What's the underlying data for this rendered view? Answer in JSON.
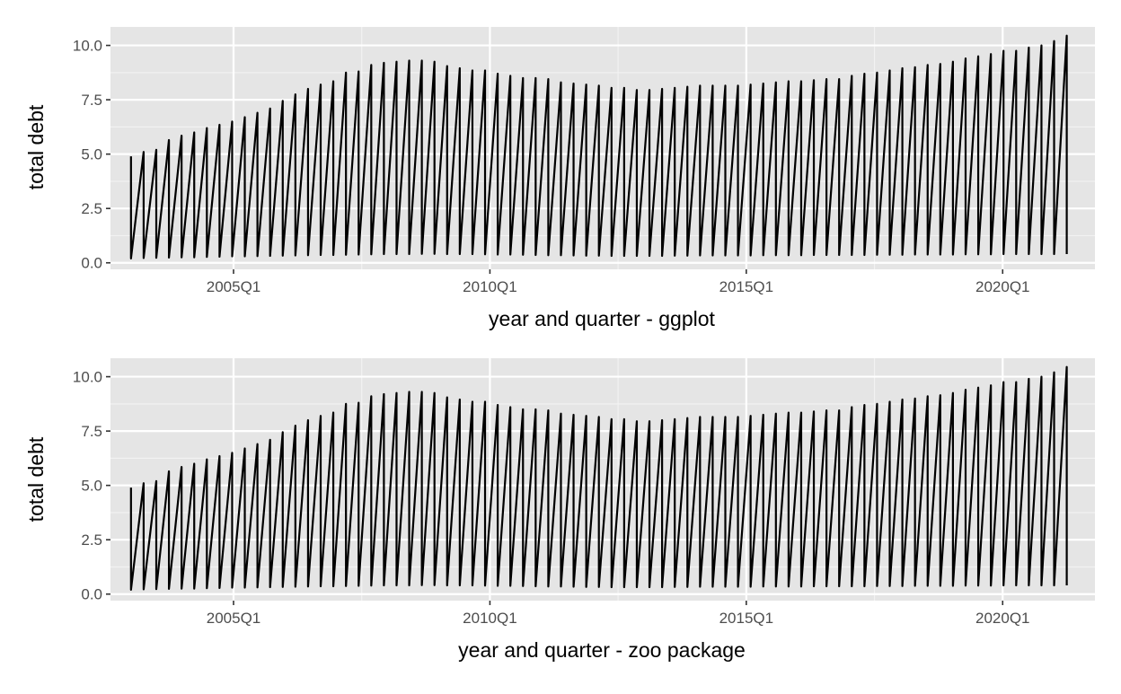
{
  "theme": {
    "panel_background": "#e5e5e5",
    "grid_major": "#ffffff",
    "grid_minor": "#f2f2f2",
    "line_color": "#000000",
    "tick_color": "#333333",
    "tick_label_color": "#4d4d4d"
  },
  "chart_data": [
    {
      "type": "line",
      "title": "",
      "xlabel": "year and quarter - ggplot",
      "ylabel": "total debt",
      "xlim": [
        2002.6,
        2021.8
      ],
      "ylim": [
        -0.3,
        10.85
      ],
      "x_ticks": [
        {
          "value": 2005.0,
          "label": "2005Q1"
        },
        {
          "value": 2010.0,
          "label": "2010Q1"
        },
        {
          "value": 2015.0,
          "label": "2015Q1"
        },
        {
          "value": 2020.0,
          "label": "2020Q1"
        }
      ],
      "y_ticks": [
        {
          "value": 0.0,
          "label": "0.0"
        },
        {
          "value": 2.5,
          "label": "2.5"
        },
        {
          "value": 5.0,
          "label": "5.0"
        },
        {
          "value": 7.5,
          "label": "7.5"
        },
        {
          "value": 10.0,
          "label": "10.0"
        }
      ],
      "grid": true,
      "legend": "none",
      "series": [
        {
          "x_start": 2003.0,
          "x_end": 2021.25,
          "peaks": [
            4.9,
            5.1,
            5.2,
            5.65,
            5.85,
            6.0,
            6.2,
            6.35,
            6.5,
            6.7,
            6.9,
            7.1,
            7.45,
            7.75,
            8.0,
            8.2,
            8.35,
            8.75,
            8.8,
            9.1,
            9.2,
            9.25,
            9.3,
            9.3,
            9.25,
            9.05,
            8.95,
            8.85,
            8.85,
            8.7,
            8.6,
            8.5,
            8.5,
            8.45,
            8.3,
            8.25,
            8.2,
            8.15,
            8.05,
            8.05,
            7.95,
            7.95,
            8.0,
            8.05,
            8.1,
            8.15,
            8.15,
            8.15,
            8.15,
            8.2,
            8.25,
            8.3,
            8.35,
            8.35,
            8.4,
            8.45,
            8.45,
            8.6,
            8.7,
            8.75,
            8.85,
            8.95,
            9.0,
            9.1,
            9.15,
            9.25,
            9.4,
            9.5,
            9.6,
            9.75,
            9.75,
            9.9,
            10.0,
            10.2,
            10.45
          ],
          "troughs": [
            0.2,
            0.22,
            0.23,
            0.24,
            0.25,
            0.25,
            0.27,
            0.28,
            0.3,
            0.3,
            0.31,
            0.32,
            0.33,
            0.34,
            0.35,
            0.36,
            0.36,
            0.37,
            0.38,
            0.39,
            0.4,
            0.4,
            0.4,
            0.41,
            0.41,
            0.4,
            0.4,
            0.4,
            0.39,
            0.38,
            0.38,
            0.37,
            0.36,
            0.35,
            0.35,
            0.34,
            0.33,
            0.33,
            0.32,
            0.32,
            0.32,
            0.32,
            0.32,
            0.33,
            0.33,
            0.34,
            0.34,
            0.34,
            0.34,
            0.34,
            0.35,
            0.35,
            0.35,
            0.35,
            0.36,
            0.36,
            0.36,
            0.36,
            0.36,
            0.37,
            0.37,
            0.37,
            0.38,
            0.38,
            0.38,
            0.38,
            0.39,
            0.39,
            0.39,
            0.4,
            0.4,
            0.4,
            0.4,
            0.4
          ]
        }
      ]
    },
    {
      "type": "line",
      "title": "",
      "xlabel": "year and quarter - zoo package",
      "ylabel": "total debt",
      "xlim": [
        2002.6,
        2021.8
      ],
      "ylim": [
        -0.3,
        10.85
      ],
      "x_ticks": [
        {
          "value": 2005.0,
          "label": "2005Q1"
        },
        {
          "value": 2010.0,
          "label": "2010Q1"
        },
        {
          "value": 2015.0,
          "label": "2015Q1"
        },
        {
          "value": 2020.0,
          "label": "2020Q1"
        }
      ],
      "y_ticks": [
        {
          "value": 0.0,
          "label": "0.0"
        },
        {
          "value": 2.5,
          "label": "2.5"
        },
        {
          "value": 5.0,
          "label": "5.0"
        },
        {
          "value": 7.5,
          "label": "7.5"
        },
        {
          "value": 10.0,
          "label": "10.0"
        }
      ],
      "grid": true,
      "legend": "none",
      "series": [
        {
          "x_start": 2003.0,
          "x_end": 2021.25,
          "peaks": [
            4.9,
            5.1,
            5.2,
            5.65,
            5.85,
            6.0,
            6.2,
            6.35,
            6.5,
            6.7,
            6.9,
            7.1,
            7.45,
            7.75,
            8.0,
            8.2,
            8.35,
            8.75,
            8.8,
            9.1,
            9.2,
            9.25,
            9.3,
            9.3,
            9.25,
            9.05,
            8.95,
            8.85,
            8.85,
            8.7,
            8.6,
            8.5,
            8.5,
            8.45,
            8.3,
            8.25,
            8.2,
            8.15,
            8.05,
            8.05,
            7.95,
            7.95,
            8.0,
            8.05,
            8.1,
            8.15,
            8.15,
            8.15,
            8.15,
            8.2,
            8.25,
            8.3,
            8.35,
            8.35,
            8.4,
            8.45,
            8.45,
            8.6,
            8.7,
            8.75,
            8.85,
            8.95,
            9.0,
            9.1,
            9.15,
            9.25,
            9.4,
            9.5,
            9.6,
            9.75,
            9.75,
            9.9,
            10.0,
            10.2,
            10.45
          ],
          "troughs": [
            0.2,
            0.22,
            0.23,
            0.24,
            0.25,
            0.25,
            0.27,
            0.28,
            0.3,
            0.3,
            0.31,
            0.32,
            0.33,
            0.34,
            0.35,
            0.36,
            0.36,
            0.37,
            0.38,
            0.39,
            0.4,
            0.4,
            0.4,
            0.41,
            0.41,
            0.4,
            0.4,
            0.4,
            0.39,
            0.38,
            0.38,
            0.37,
            0.36,
            0.35,
            0.35,
            0.34,
            0.33,
            0.33,
            0.32,
            0.32,
            0.32,
            0.32,
            0.32,
            0.33,
            0.33,
            0.34,
            0.34,
            0.34,
            0.34,
            0.34,
            0.35,
            0.35,
            0.35,
            0.35,
            0.36,
            0.36,
            0.36,
            0.36,
            0.36,
            0.37,
            0.37,
            0.37,
            0.38,
            0.38,
            0.38,
            0.38,
            0.39,
            0.39,
            0.39,
            0.4,
            0.4,
            0.4,
            0.4,
            0.4
          ]
        }
      ]
    }
  ]
}
